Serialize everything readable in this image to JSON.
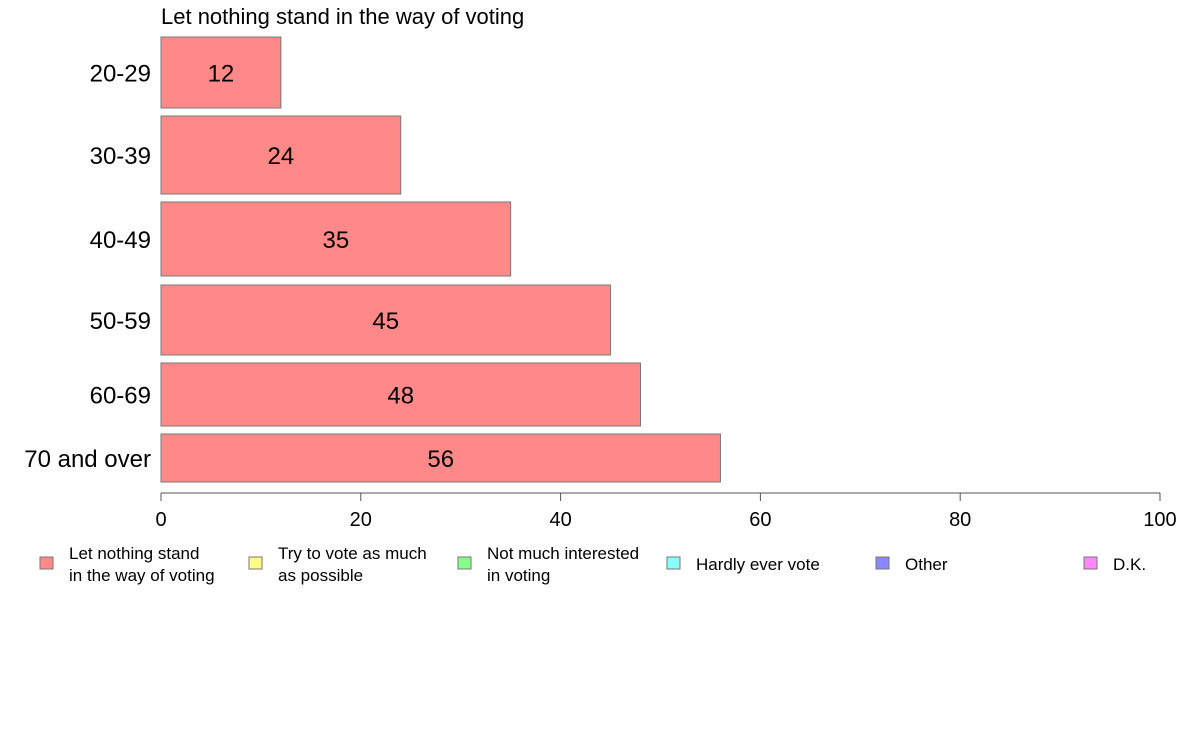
{
  "chart_data": {
    "type": "bar",
    "orientation": "horizontal",
    "title": "Let nothing stand in the way of voting",
    "xlabel": "",
    "ylabel": "",
    "categories": [
      "20-29",
      "30-39",
      "40-49",
      "50-59",
      "60-69",
      "70 and over"
    ],
    "series": [
      {
        "name": "Let nothing stand in the way of voting",
        "values": [
          12,
          24,
          35,
          45,
          48,
          56
        ],
        "color": "#ff8888"
      }
    ],
    "xlim": [
      0,
      100
    ],
    "xticks": [
      0,
      20,
      40,
      60,
      80,
      100
    ],
    "grid": false,
    "legend": {
      "position": "bottom",
      "entries": [
        {
          "lines": [
            "Let nothing stand",
            "in the way of voting"
          ],
          "color": "#ff8888"
        },
        {
          "lines": [
            "Try to vote as much",
            "as possible"
          ],
          "color": "#ffff88"
        },
        {
          "lines": [
            "Not much interested",
            "in voting"
          ],
          "color": "#88ff88"
        },
        {
          "lines": [
            "Hardly ever vote"
          ],
          "color": "#88ffff"
        },
        {
          "lines": [
            "Other"
          ],
          "color": "#8888ff"
        },
        {
          "lines": [
            "D.K."
          ],
          "color": "#ff88ff"
        }
      ]
    }
  }
}
